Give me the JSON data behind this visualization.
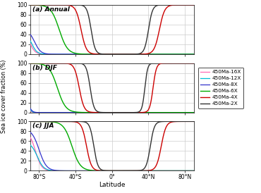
{
  "title_a": "(a) Annual",
  "title_b": "(b) DJF",
  "title_c": "(c) JJA",
  "xlabel": "Latitude",
  "ylabel": "Sea ice cover fraction (%)",
  "xlim": [
    -90,
    90
  ],
  "ylim": [
    0,
    100
  ],
  "xticks_grid": [
    -80,
    -60,
    -40,
    -20,
    0,
    20,
    40,
    60,
    80
  ],
  "xticks_show": [
    -80,
    -40,
    0,
    40,
    80
  ],
  "xticklabels_show": [
    "80°S",
    "40°S",
    "0°",
    "40°N",
    "80°N"
  ],
  "yticks": [
    0,
    20,
    40,
    60,
    80,
    100
  ],
  "series": [
    {
      "label": "450Ma-16X",
      "color": "#ff69b4",
      "lw": 0.9
    },
    {
      "label": "450Ma-12X",
      "color": "#00bcd4",
      "lw": 0.9
    },
    {
      "label": "450Ma-8X",
      "color": "#3333cc",
      "lw": 0.9
    },
    {
      "label": "450Ma-6X",
      "color": "#00aa00",
      "lw": 1.0
    },
    {
      "label": "450Ma-4X",
      "color": "#cc0000",
      "lw": 1.0
    },
    {
      "label": "450Ma-2X",
      "color": "#333333",
      "lw": 1.0
    }
  ],
  "grid_color": "#cccccc",
  "bg_color": "#ffffff",
  "annual": {
    "s_centers": [
      -90,
      -88,
      -85,
      -58,
      -34,
      -23
    ],
    "n_centers": [
      90,
      90,
      90,
      90,
      52,
      40
    ],
    "steep_s": [
      0.35,
      0.35,
      0.3,
      0.22,
      0.35,
      0.45
    ],
    "steep_n": [
      0.5,
      0.5,
      0.5,
      0.5,
      0.35,
      0.45
    ],
    "s_max": [
      45,
      42,
      50,
      100,
      100,
      100
    ],
    "n_max": [
      0,
      0,
      0,
      0,
      100,
      100
    ]
  },
  "djf": {
    "s_centers": [
      -90,
      -90,
      -90,
      -60,
      -36,
      -24
    ],
    "n_centers": [
      90,
      90,
      90,
      90,
      45,
      36
    ],
    "steep_s": [
      1.0,
      0.8,
      0.6,
      0.22,
      0.38,
      0.48
    ],
    "steep_n": [
      0.5,
      0.5,
      0.5,
      0.5,
      0.55,
      0.65
    ],
    "s_max": [
      10,
      14,
      18,
      100,
      100,
      100
    ],
    "n_max": [
      0,
      0,
      0,
      0,
      100,
      100
    ]
  },
  "jja": {
    "s_centers": [
      -84,
      -82,
      -80,
      -44,
      -28,
      -20
    ],
    "n_centers": [
      90,
      90,
      90,
      90,
      54,
      42
    ],
    "steep_s": [
      0.3,
      0.28,
      0.25,
      0.22,
      0.38,
      0.45
    ],
    "steep_n": [
      0.5,
      0.5,
      0.5,
      0.5,
      0.38,
      0.45
    ],
    "s_max": [
      80,
      58,
      85,
      100,
      100,
      100
    ],
    "n_max": [
      0,
      0,
      0,
      0,
      100,
      100
    ]
  }
}
